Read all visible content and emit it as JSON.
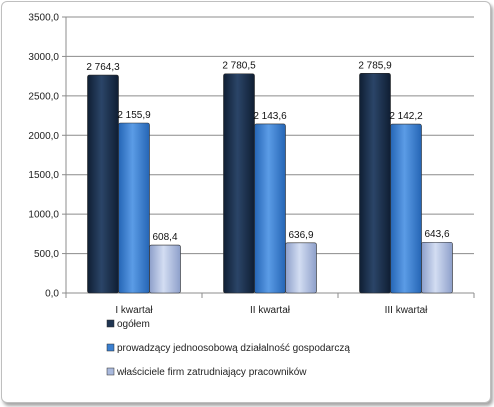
{
  "chart_data": {
    "type": "bar",
    "categories": [
      "I kwartał",
      "II kwartał",
      "III kwartał"
    ],
    "series": [
      {
        "name": "ogółem",
        "values": [
          2764.3,
          2780.5,
          2785.9
        ],
        "labels": [
          "2 764,3",
          "2 780,5",
          "2 785,9"
        ],
        "color": "#1f3552"
      },
      {
        "name": "prowadzący jednoosobową działalność gospodarczą",
        "values": [
          2155.9,
          2143.6,
          2142.2
        ],
        "labels": [
          "2 155,9",
          "2 143,6",
          "2 142,2"
        ],
        "color": "#3a7fd0"
      },
      {
        "name": "właściciele firm zatrudniający pracowników",
        "values": [
          608.4,
          636.9,
          643.6
        ],
        "labels": [
          "608,4",
          "636,9",
          "643,6"
        ],
        "color": "#a9b9dd"
      }
    ],
    "ylim": [
      0,
      3500
    ],
    "yticks": [
      0,
      500,
      1000,
      1500,
      2000,
      2500,
      3000,
      3500
    ],
    "ytick_labels": [
      "0,0",
      "500,0",
      "1000,0",
      "1500,0",
      "2000,0",
      "2500,0",
      "3000,0",
      "3500,0"
    ],
    "grid": true,
    "legend": "bottom",
    "title": "",
    "xlabel": "",
    "ylabel": ""
  }
}
